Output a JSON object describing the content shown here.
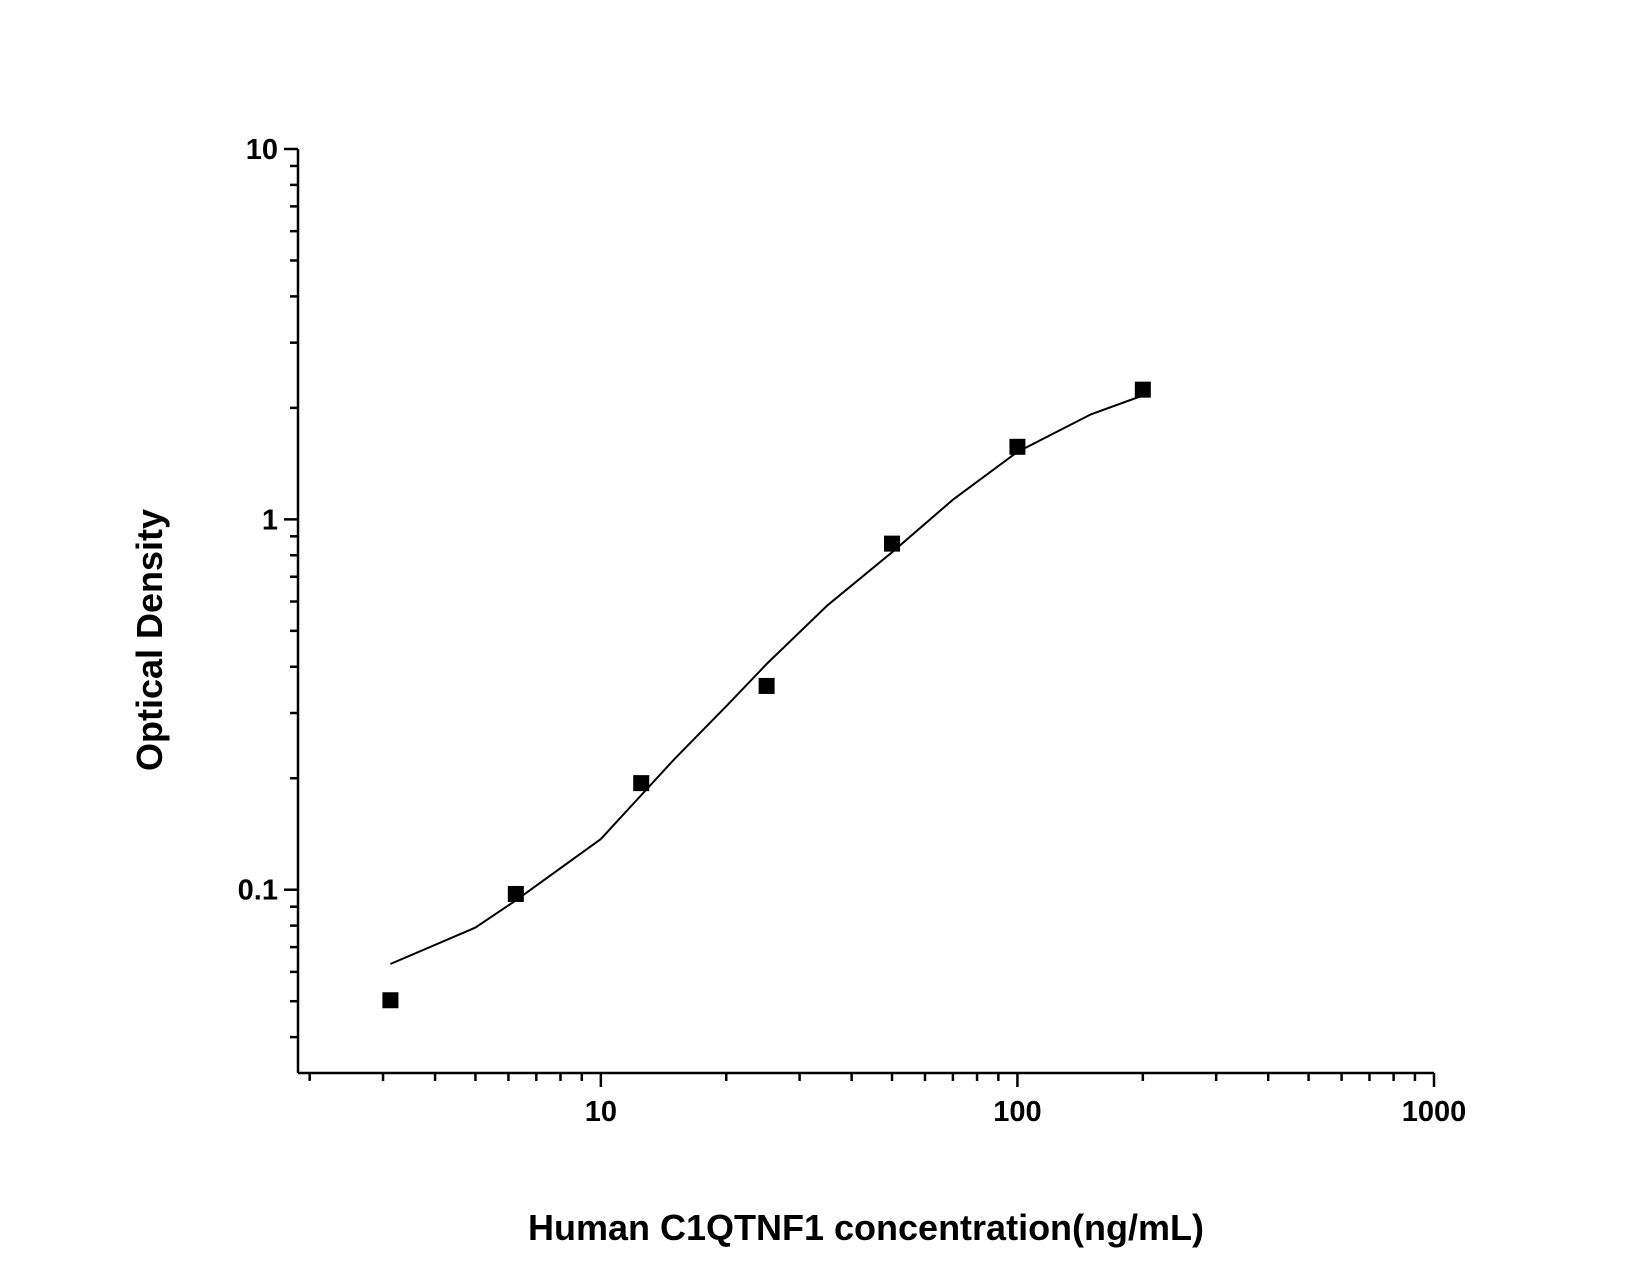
{
  "chart_data": {
    "type": "scatter",
    "xlabel": "Human C1QTNF1 concentration(ng/mL)",
    "ylabel": "Optical Density",
    "x": [
      3.125,
      6.25,
      12.5,
      25,
      50,
      100,
      200
    ],
    "values": [
      0.0503,
      0.0974,
      0.194,
      0.355,
      0.86,
      1.57,
      2.24
    ],
    "color": "#000000",
    "curve": {
      "x": [
        3.125,
        5,
        6.25,
        10,
        15,
        20,
        25,
        35,
        50,
        70,
        100,
        150,
        200
      ],
      "values": [
        0.063,
        0.079,
        0.0936,
        0.137,
        0.225,
        0.313,
        0.407,
        0.586,
        0.815,
        1.13,
        1.52,
        1.92,
        2.16
      ]
    },
    "xscale": "log",
    "yscale": "log",
    "xlim": [
      1.875,
      1000
    ],
    "ylim": [
      0.032,
      10
    ],
    "xticks": [
      10,
      100,
      1000
    ],
    "yticks": [
      0.1,
      1,
      10
    ],
    "xminorticks": [
      2,
      3,
      4,
      5,
      6,
      7,
      8,
      9,
      20,
      30,
      40,
      50,
      60,
      70,
      80,
      90,
      200,
      300,
      400,
      500,
      600,
      700,
      800,
      900
    ],
    "yminorticks": [
      0.04,
      0.05,
      0.06,
      0.07,
      0.08,
      0.09,
      0.2,
      0.3,
      0.4,
      0.5,
      0.6,
      0.7,
      0.8,
      0.9,
      2,
      3,
      4,
      5,
      6,
      7,
      8,
      9
    ]
  }
}
